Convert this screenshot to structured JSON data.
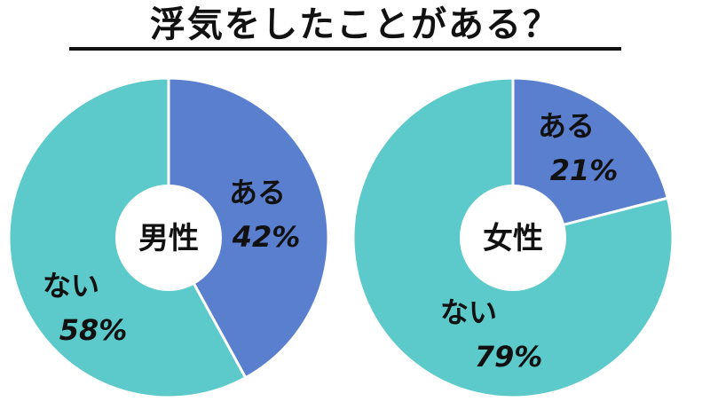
{
  "title": "浮気をしたことがある？",
  "colors": {
    "yes": "#5b7fcf",
    "no": "#5ccaca",
    "center": "#ffffff"
  },
  "chart_data": [
    {
      "type": "pie",
      "center_label": "男性",
      "slices": [
        {
          "label": "ある",
          "value": 42,
          "value_label": "42%",
          "color": "#5b7fcf"
        },
        {
          "label": "ない",
          "value": 58,
          "value_label": "58%",
          "color": "#5ccaca"
        }
      ]
    },
    {
      "type": "pie",
      "center_label": "女性",
      "slices": [
        {
          "label": "ある",
          "value": 21,
          "value_label": "21%",
          "color": "#5b7fcf"
        },
        {
          "label": "ない",
          "value": 79,
          "value_label": "79%",
          "color": "#5ccaca"
        }
      ]
    }
  ]
}
